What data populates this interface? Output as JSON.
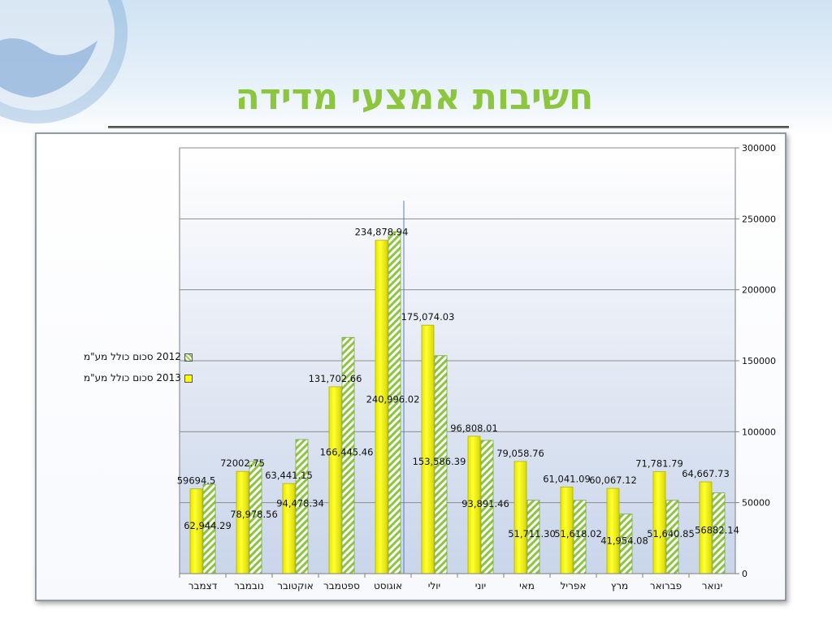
{
  "slide": {
    "title": "חשיבות אמצעי מדידה"
  },
  "colors": {
    "title": "#8cc63f",
    "series_2013": "#ffff00",
    "series_2012_hatch": "#8cc63f"
  },
  "chart_data": {
    "type": "bar",
    "categories": [
      "ינואר",
      "פברואר",
      "מרץ",
      "אפריל",
      "מאי",
      "יוני",
      "יולי",
      "אוגוסט",
      "ספטמבר",
      "אוקטובר",
      "נובמבר",
      "דצמבר"
    ],
    "series": [
      {
        "name": "2013 סכום כולל מע\"מ",
        "values": [
          64667.73,
          71781.79,
          60067.12,
          61041.09,
          79058.76,
          96808.01,
          175074.03,
          234878.94,
          131702.66,
          63441.15,
          72002.75,
          59694.5
        ],
        "labels": [
          "64,667.73",
          "71,781.79",
          "60,067.12",
          "61,041.09",
          "79,058.76",
          "96,808.01",
          "175,074.03",
          "234,878.94",
          "131,702.66",
          "63,441.15",
          "72002.75",
          "59694.5"
        ]
      },
      {
        "name": "2012 סכום כולל מע\"מ",
        "values": [
          56882.14,
          51640.85,
          41954.08,
          51618.02,
          51711.3,
          93891.46,
          153586.39,
          240996.02,
          166445.46,
          94478.34,
          78978.56,
          62944.29
        ],
        "labels": [
          "56882.14",
          "51,640.85",
          "41,954.08",
          "51,618.02",
          "51,711.30",
          "93,891.46",
          "153,586.39",
          "240,996.02",
          "166,445.46",
          "94,478.34",
          "78,978.56",
          "62,944.29"
        ]
      }
    ],
    "y_ticks": [
      "0",
      "50000",
      "100000",
      "150000",
      "200000",
      "250000",
      "300000"
    ],
    "ylim": [
      0,
      300000
    ],
    "x_order": "right-to-left",
    "y_axis_side": "right",
    "legend_position": "left",
    "grid": true
  }
}
